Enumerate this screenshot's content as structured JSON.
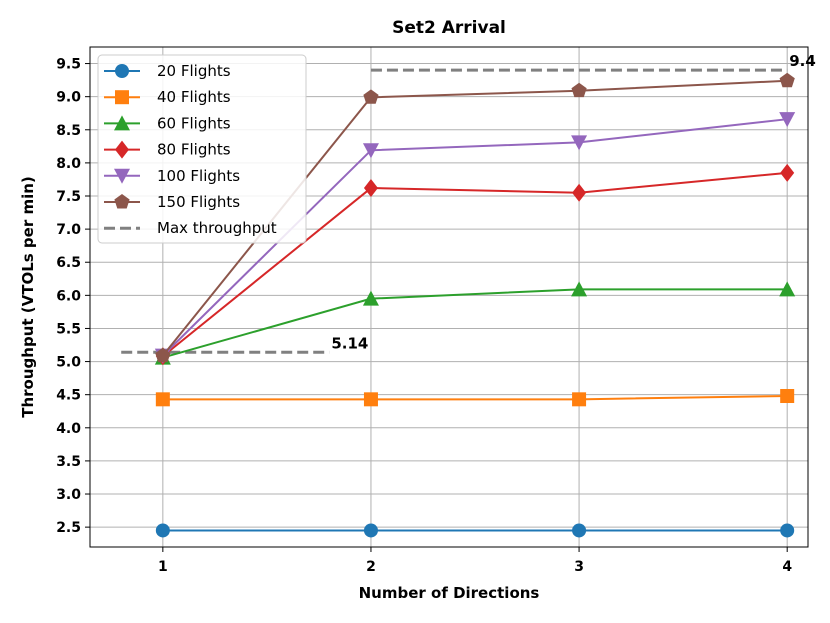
{
  "chart_data": {
    "type": "line",
    "title": "Set2 Arrival",
    "xlabel": "Number of Directions",
    "ylabel": "Throughput (VTOLs per min)",
    "x": [
      1,
      2,
      3,
      4
    ],
    "x_ticks": [
      "1",
      "2",
      "3",
      "4"
    ],
    "xlim": [
      0.65,
      4.1
    ],
    "ylim": [
      2.2,
      9.75
    ],
    "y_ticks": [
      "2.5",
      "3.0",
      "3.5",
      "4.0",
      "4.5",
      "5.0",
      "5.5",
      "6.0",
      "6.5",
      "7.0",
      "7.5",
      "8.0",
      "8.5",
      "9.0",
      "9.5"
    ],
    "grid": true,
    "legend_position": "upper-left",
    "series": [
      {
        "name": "20 Flights",
        "color": "#1f77b4",
        "marker": "circle",
        "values": [
          2.45,
          2.45,
          2.45,
          2.45
        ]
      },
      {
        "name": "40 Flights",
        "color": "#ff7f0e",
        "marker": "square",
        "values": [
          4.43,
          4.43,
          4.43,
          4.48
        ]
      },
      {
        "name": "60 Flights",
        "color": "#2ca02c",
        "marker": "triangle-up",
        "values": [
          5.06,
          5.95,
          6.09,
          6.09
        ]
      },
      {
        "name": "80 Flights",
        "color": "#d62728",
        "marker": "diamond",
        "values": [
          5.08,
          7.62,
          7.55,
          7.85
        ]
      },
      {
        "name": "100 Flights",
        "color": "#9467bd",
        "marker": "triangle-down",
        "values": [
          5.09,
          8.19,
          8.31,
          8.66
        ]
      },
      {
        "name": "150 Flights",
        "color": "#8c564b",
        "marker": "pentagon",
        "values": [
          5.09,
          8.99,
          9.09,
          9.24
        ]
      }
    ],
    "reference_lines": [
      {
        "name": "Max throughput",
        "color": "#808080",
        "segments": [
          {
            "x": [
              0.8,
              1.8
            ],
            "y": 5.14,
            "label": "5.14"
          },
          {
            "x": [
              2.0,
              4.0
            ],
            "y": 9.4,
            "label": "9.4"
          }
        ]
      }
    ]
  }
}
